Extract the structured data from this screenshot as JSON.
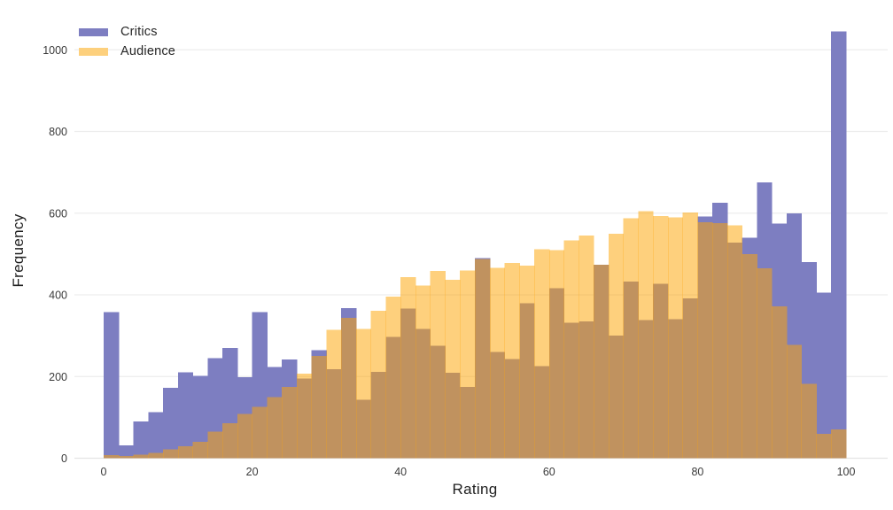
{
  "legend": {
    "items": [
      {
        "label": "Critics",
        "swatch_color": "#7d7ec1"
      },
      {
        "label": "Audience",
        "swatch_color": "#fdd07d"
      }
    ]
  },
  "colors": {
    "critics_fill": "#7d7ec1",
    "audience_fill": "rgba(253,165,5,0.52)",
    "overlap_observed": "#bd9260",
    "gridline": "#ededed",
    "baseline": "#e4e4e4",
    "tick_text": "#3a3a3a"
  },
  "chart_data": {
    "type": "histogram",
    "title": "",
    "xlabel": "Rating",
    "ylabel": "Frequency",
    "bin_start": 0,
    "bin_width": 2,
    "xlim": [
      0,
      100
    ],
    "ylim": [
      0,
      1050
    ],
    "xticks": [
      0,
      20,
      40,
      60,
      80,
      100
    ],
    "yticks": [
      0,
      200,
      400,
      600,
      800,
      1000
    ],
    "grid": true,
    "legend_position": "top-left",
    "series": [
      {
        "name": "Critics",
        "values": [
          358,
          31,
          90,
          113,
          172,
          210,
          202,
          245,
          270,
          198,
          358,
          223,
          242,
          195,
          264,
          218,
          368,
          143,
          211,
          297,
          366,
          316,
          275,
          209,
          175,
          490,
          260,
          243,
          379,
          225,
          416,
          332,
          335,
          474,
          300,
          432,
          338,
          427,
          340,
          391,
          592,
          625,
          528,
          540,
          675,
          575,
          600,
          480,
          405,
          1045
        ]
      },
      {
        "name": "Audience",
        "values": [
          8,
          5,
          9,
          13,
          22,
          29,
          40,
          65,
          86,
          108,
          126,
          150,
          175,
          207,
          250,
          314,
          344,
          316,
          361,
          396,
          443,
          423,
          458,
          437,
          460,
          488,
          466,
          478,
          472,
          512,
          510,
          533,
          545,
          474,
          550,
          588,
          605,
          593,
          590,
          602,
          578,
          576,
          570,
          500,
          465,
          372,
          278,
          182,
          60,
          70
        ]
      }
    ]
  }
}
